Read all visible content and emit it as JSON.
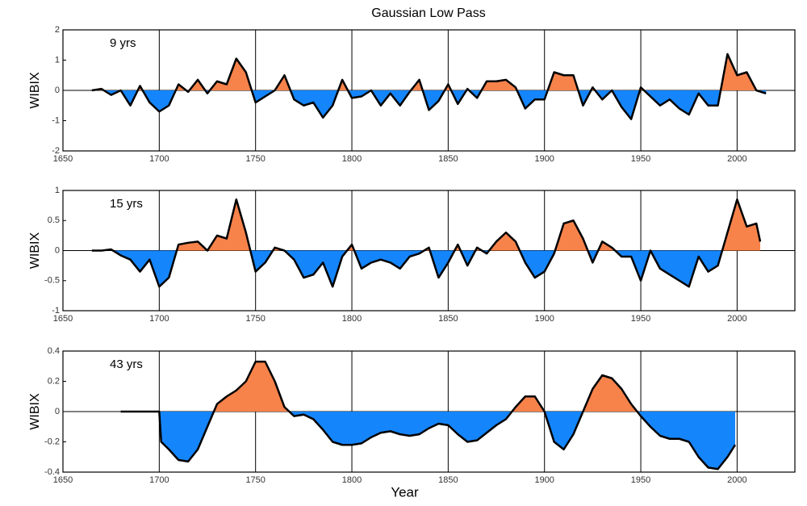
{
  "chart_data": [
    {
      "type": "area",
      "title": "Gaussian Low Pass",
      "annotation": "9 yrs",
      "ylabel": "WIBIX",
      "x": [
        1665,
        1670,
        1675,
        1680,
        1685,
        1690,
        1695,
        1700,
        1705,
        1710,
        1715,
        1720,
        1725,
        1730,
        1735,
        1740,
        1745,
        1750,
        1755,
        1760,
        1765,
        1770,
        1775,
        1780,
        1785,
        1790,
        1795,
        1800,
        1805,
        1810,
        1815,
        1820,
        1825,
        1830,
        1835,
        1840,
        1845,
        1850,
        1855,
        1860,
        1865,
        1870,
        1875,
        1880,
        1885,
        1890,
        1895,
        1900,
        1905,
        1910,
        1915,
        1920,
        1925,
        1930,
        1935,
        1940,
        1945,
        1950,
        1955,
        1960,
        1965,
        1970,
        1975,
        1980,
        1985,
        1990,
        1995,
        2000,
        2005,
        2010,
        2015
      ],
      "values": [
        0.0,
        0.05,
        -0.15,
        0.0,
        -0.5,
        0.15,
        -0.4,
        -0.7,
        -0.5,
        0.2,
        -0.05,
        0.35,
        -0.1,
        0.3,
        0.2,
        1.05,
        0.6,
        -0.4,
        -0.2,
        0.0,
        0.5,
        -0.3,
        -0.5,
        -0.4,
        -0.9,
        -0.5,
        0.35,
        -0.25,
        -0.2,
        0.0,
        -0.5,
        -0.1,
        -0.5,
        -0.05,
        0.35,
        -0.65,
        -0.35,
        0.2,
        -0.45,
        0.05,
        -0.25,
        0.3,
        0.3,
        0.35,
        0.1,
        -0.6,
        -0.3,
        -0.3,
        0.6,
        0.5,
        0.5,
        -0.5,
        0.1,
        -0.3,
        0.0,
        -0.55,
        -0.95,
        0.1,
        -0.2,
        -0.5,
        -0.3,
        -0.6,
        -0.8,
        -0.1,
        -0.5,
        -0.5,
        1.2,
        0.5,
        0.6,
        0.0,
        -0.1
      ],
      "xlim": [
        1650,
        2030
      ],
      "xticks": [
        1650,
        1700,
        1750,
        1800,
        1850,
        1900,
        1950,
        2000
      ],
      "ylim": [
        -2,
        2
      ],
      "yticks": [
        -2,
        -1,
        0,
        1,
        2
      ],
      "grid": true,
      "positive_color": "#f7834b",
      "negative_color": "#1585fb",
      "line_color": "#000000"
    },
    {
      "type": "area",
      "annotation": "15 yrs",
      "ylabel": "WIBIX",
      "x": [
        1665,
        1670,
        1675,
        1680,
        1685,
        1690,
        1695,
        1700,
        1705,
        1710,
        1715,
        1720,
        1725,
        1730,
        1735,
        1740,
        1745,
        1750,
        1755,
        1760,
        1765,
        1770,
        1775,
        1780,
        1785,
        1790,
        1795,
        1800,
        1805,
        1810,
        1815,
        1820,
        1825,
        1830,
        1835,
        1840,
        1845,
        1850,
        1855,
        1860,
        1865,
        1870,
        1875,
        1880,
        1885,
        1890,
        1895,
        1900,
        1905,
        1910,
        1915,
        1920,
        1925,
        1930,
        1935,
        1940,
        1945,
        1950,
        1955,
        1960,
        1965,
        1970,
        1975,
        1980,
        1985,
        1990,
        1995,
        2000,
        2005,
        2010,
        2012
      ],
      "values": [
        0.0,
        0.0,
        0.02,
        -0.08,
        -0.15,
        -0.35,
        -0.15,
        -0.6,
        -0.45,
        0.1,
        0.13,
        0.15,
        0.0,
        0.25,
        0.2,
        0.85,
        0.3,
        -0.35,
        -0.2,
        0.05,
        0.0,
        -0.15,
        -0.45,
        -0.4,
        -0.2,
        -0.6,
        -0.1,
        0.1,
        -0.3,
        -0.2,
        -0.15,
        -0.2,
        -0.3,
        -0.1,
        -0.05,
        0.05,
        -0.45,
        -0.2,
        0.1,
        -0.25,
        0.05,
        -0.05,
        0.15,
        0.3,
        0.15,
        -0.2,
        -0.45,
        -0.35,
        -0.05,
        0.45,
        0.5,
        0.2,
        -0.2,
        0.15,
        0.05,
        -0.1,
        -0.1,
        -0.5,
        0.0,
        -0.3,
        -0.4,
        -0.5,
        -0.6,
        -0.1,
        -0.35,
        -0.25,
        0.3,
        0.85,
        0.4,
        0.45,
        0.15
      ],
      "xlim": [
        1650,
        2030
      ],
      "xticks": [
        1650,
        1700,
        1750,
        1800,
        1850,
        1900,
        1950,
        2000
      ],
      "ylim": [
        -1,
        1
      ],
      "yticks": [
        -1,
        -0.5,
        0,
        0.5,
        1
      ],
      "grid": true,
      "positive_color": "#f7834b",
      "negative_color": "#1585fb",
      "line_color": "#000000"
    },
    {
      "type": "area",
      "annotation": "43 yrs",
      "ylabel": "WIBIX",
      "xlabel": "Year",
      "x": [
        1680,
        1690,
        1700,
        1701,
        1705,
        1710,
        1715,
        1720,
        1725,
        1730,
        1735,
        1740,
        1745,
        1750,
        1755,
        1760,
        1765,
        1770,
        1775,
        1780,
        1785,
        1790,
        1795,
        1800,
        1805,
        1810,
        1815,
        1820,
        1825,
        1830,
        1835,
        1840,
        1845,
        1850,
        1855,
        1860,
        1865,
        1870,
        1875,
        1880,
        1885,
        1890,
        1895,
        1900,
        1905,
        1910,
        1915,
        1920,
        1925,
        1930,
        1935,
        1940,
        1945,
        1950,
        1955,
        1960,
        1965,
        1970,
        1975,
        1980,
        1985,
        1990,
        1995,
        1999
      ],
      "values": [
        0,
        0,
        0,
        -0.2,
        -0.25,
        -0.32,
        -0.33,
        -0.25,
        -0.1,
        0.05,
        0.1,
        0.14,
        0.2,
        0.33,
        0.33,
        0.2,
        0.03,
        -0.03,
        -0.02,
        -0.05,
        -0.12,
        -0.2,
        -0.22,
        -0.22,
        -0.21,
        -0.17,
        -0.14,
        -0.13,
        -0.15,
        -0.16,
        -0.15,
        -0.11,
        -0.08,
        -0.09,
        -0.15,
        -0.2,
        -0.19,
        -0.14,
        -0.09,
        -0.05,
        0.03,
        0.1,
        0.1,
        0.0,
        -0.2,
        -0.25,
        -0.15,
        0.0,
        0.15,
        0.24,
        0.22,
        0.15,
        0.05,
        -0.03,
        -0.1,
        -0.16,
        -0.18,
        -0.18,
        -0.2,
        -0.3,
        -0.37,
        -0.38,
        -0.3,
        -0.22
      ],
      "xlim": [
        1650,
        2030
      ],
      "xticks": [
        1650,
        1700,
        1750,
        1800,
        1850,
        1900,
        1950,
        2000
      ],
      "ylim": [
        -0.4,
        0.4
      ],
      "yticks": [
        -0.4,
        -0.2,
        0,
        0.2,
        0.4
      ],
      "grid": true,
      "positive_color": "#f7834b",
      "negative_color": "#1585fb",
      "line_color": "#000000"
    }
  ]
}
